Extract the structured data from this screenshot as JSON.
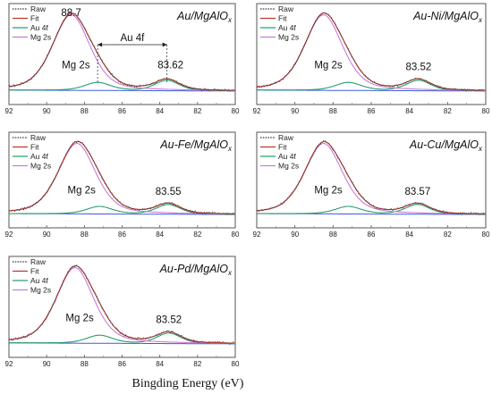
{
  "chart_data": [
    {
      "type": "line",
      "title": "Au/MgAlO",
      "title_sub": "x",
      "xlim": [
        92,
        80
      ],
      "xticks": [
        "92",
        "90",
        "88",
        "86",
        "84",
        "82",
        "80"
      ],
      "legend": [
        "Raw",
        "Fit",
        "Au 4f",
        "Mg 2s"
      ],
      "legend_position": "top-left",
      "peak_labels": [
        "88.7",
        "83.62"
      ],
      "mg_label": "Mg 2s",
      "bracket_label": "Au 4f",
      "mg2s_peak": 88.7,
      "au4f_peaks": [
        87.3,
        83.62
      ],
      "colors": {
        "raw": "#333333",
        "fit": "#c0392b",
        "au": "#2a9d6f",
        "mg": "#c77dda",
        "bg": "#3b5bdb"
      }
    },
    {
      "type": "line",
      "title": "Au-Ni/MgAlO",
      "title_sub": "x",
      "xlim": [
        92,
        80
      ],
      "xticks": [
        "92",
        "90",
        "88",
        "86",
        "84",
        "82",
        "80"
      ],
      "legend": [
        "Raw",
        "Fit",
        "Au 4f",
        "Mg 2s"
      ],
      "legend_position": "top-left",
      "peak_labels": [
        "83.52"
      ],
      "mg_label": "Mg 2s",
      "mg2s_peak": 88.5,
      "au4f_peaks": [
        87.2,
        83.52
      ],
      "colors": {
        "raw": "#333333",
        "fit": "#c0392b",
        "au": "#2a9d6f",
        "mg": "#c77dda",
        "bg": "#3b5bdb"
      }
    },
    {
      "type": "line",
      "title": "Au-Fe/MgAlO",
      "title_sub": "x",
      "xlim": [
        92,
        80
      ],
      "xticks": [
        "92",
        "90",
        "88",
        "86",
        "84",
        "82",
        "80"
      ],
      "legend": [
        "Raw",
        "Fit",
        "Au 4f",
        "Mg 2s"
      ],
      "legend_position": "top-left",
      "peak_labels": [
        "83.55"
      ],
      "mg_label": "Mg 2s",
      "mg2s_peak": 88.4,
      "au4f_peaks": [
        87.2,
        83.55
      ],
      "colors": {
        "raw": "#333333",
        "fit": "#c0392b",
        "au": "#2a9d6f",
        "mg": "#c77dda",
        "bg": "#3b5bdb"
      }
    },
    {
      "type": "line",
      "title": "Au-Cu/MgAlO",
      "title_sub": "x",
      "xlim": [
        92,
        80
      ],
      "xticks": [
        "92",
        "90",
        "88",
        "86",
        "84",
        "82",
        "80"
      ],
      "legend": [
        "Raw",
        "Fit",
        "Au 4f",
        "Mg 2s"
      ],
      "legend_position": "top-left",
      "peak_labels": [
        "83.57"
      ],
      "mg_label": "Mg 2s",
      "mg2s_peak": 88.5,
      "au4f_peaks": [
        87.2,
        83.57
      ],
      "colors": {
        "raw": "#333333",
        "fit": "#c0392b",
        "au": "#2a9d6f",
        "mg": "#c77dda",
        "bg": "#3b5bdb"
      }
    },
    {
      "type": "line",
      "title": "Au-Pd/MgAlO",
      "title_sub": "x",
      "xlim": [
        92,
        80
      ],
      "xticks": [
        "92",
        "90",
        "88",
        "86",
        "84",
        "82",
        "80"
      ],
      "legend": [
        "Raw",
        "Fit",
        "Au 4f",
        "Mg 2s"
      ],
      "legend_position": "top-left",
      "peak_labels": [
        "83.52"
      ],
      "mg_label": "Mg 2s",
      "mg2s_peak": 88.5,
      "au4f_peaks": [
        87.2,
        83.52
      ],
      "colors": {
        "raw": "#333333",
        "fit": "#c0392b",
        "au": "#2a9d6f",
        "mg": "#c77dda",
        "bg": "#3b5bdb"
      }
    }
  ],
  "xlabel": "Bingding Energy (eV)"
}
